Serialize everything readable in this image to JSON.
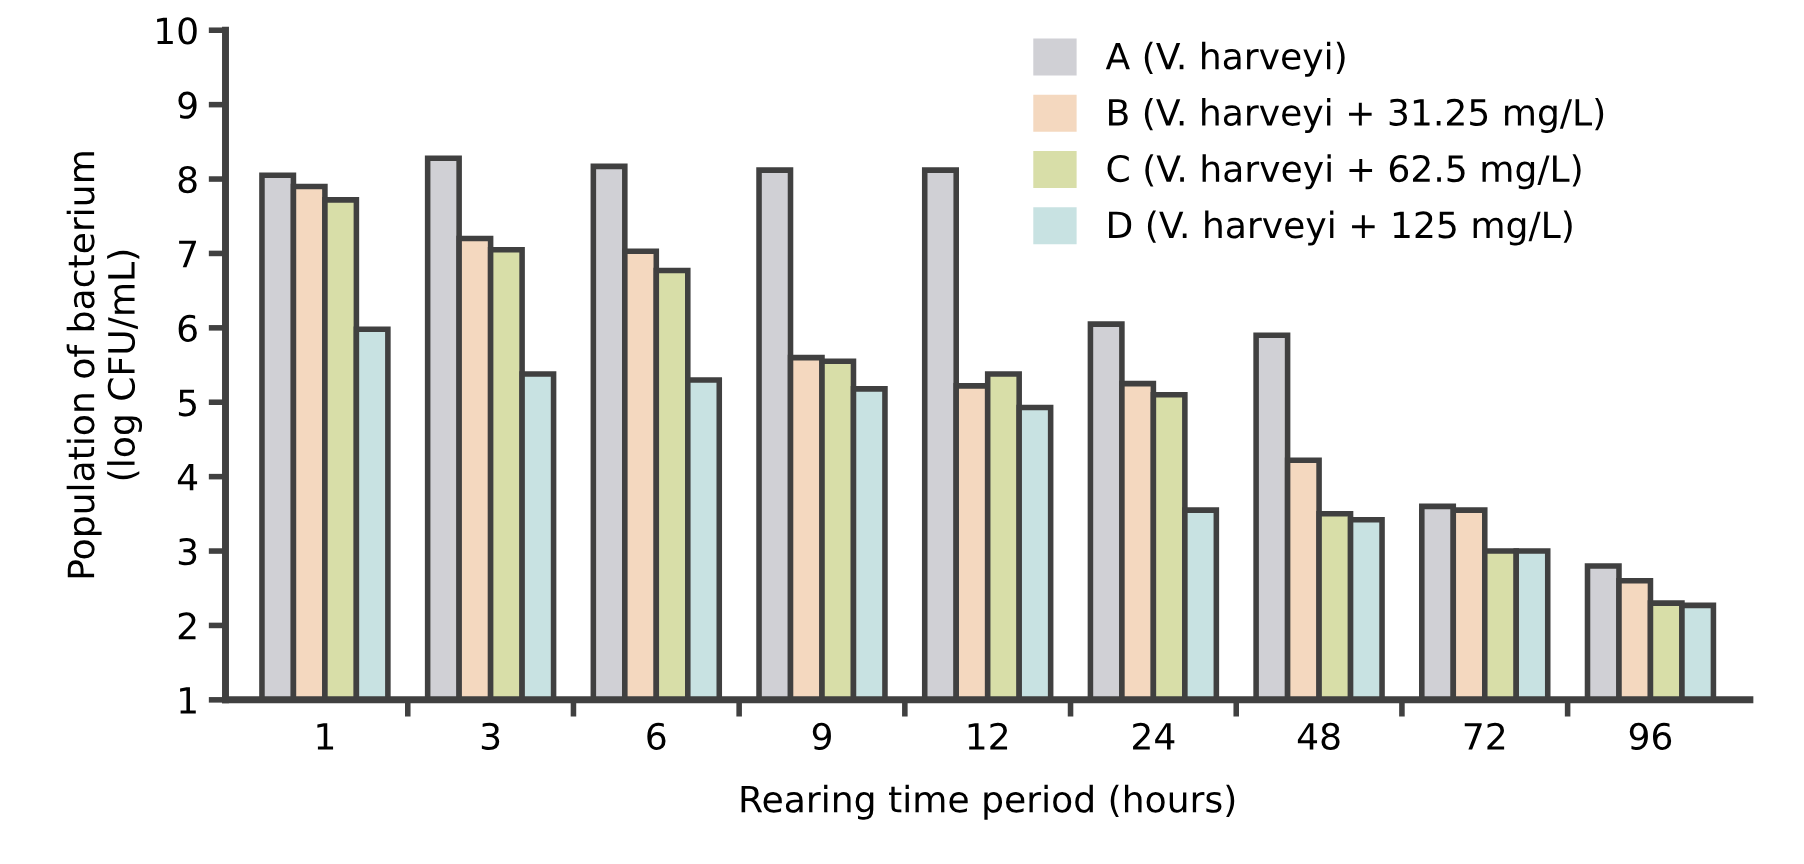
{
  "chart_data": {
    "type": "bar",
    "xlabel": "Rearing time period (hours)",
    "ylabel": "Population of bacterium\n(log CFU/mL)",
    "categories": [
      "1",
      "3",
      "6",
      "9",
      "12",
      "24",
      "48",
      "72",
      "96"
    ],
    "series": [
      {
        "name": "A (V. harveyi)",
        "color": "#d0d0d5",
        "values": [
          8.05,
          8.28,
          8.17,
          8.12,
          8.12,
          6.05,
          5.9,
          3.6,
          2.8
        ]
      },
      {
        "name": "B (V. harveyi + 31.25 mg/L)",
        "color": "#f4d8bf",
        "values": [
          7.9,
          7.2,
          7.03,
          5.6,
          5.22,
          5.25,
          4.22,
          3.55,
          2.6
        ]
      },
      {
        "name": "C (V. harveyi + 62.5 mg/L)",
        "color": "#d8dea8",
        "values": [
          7.72,
          7.05,
          6.77,
          5.55,
          5.38,
          5.1,
          3.5,
          3.0,
          2.3
        ]
      },
      {
        "name": "D (V. harveyi + 125 mg/L)",
        "color": "#c8e2e2",
        "values": [
          5.98,
          5.38,
          5.3,
          5.18,
          4.93,
          3.55,
          3.42,
          3.0,
          2.27
        ]
      }
    ],
    "ylim": [
      1,
      10
    ],
    "yticks": [
      1,
      2,
      3,
      4,
      5,
      6,
      7,
      8,
      9,
      10
    ],
    "grid": false,
    "legend": "top right"
  }
}
